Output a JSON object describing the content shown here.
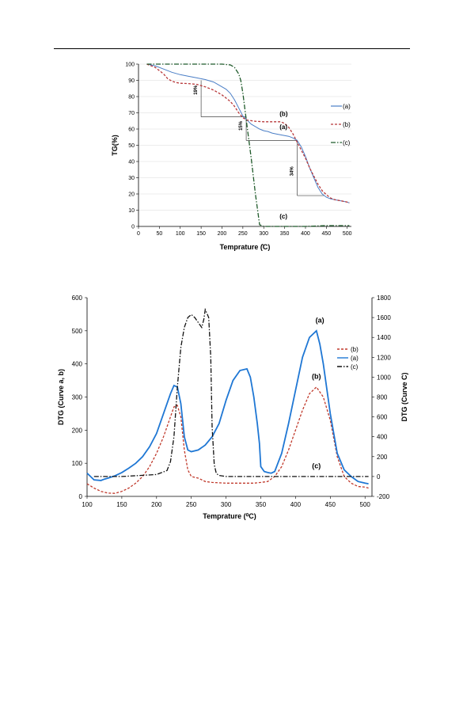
{
  "chart_data": [
    {
      "type": "line",
      "xlabel": "Temprature (̊C)",
      "ylabel": "TG(%)",
      "xlim": [
        0,
        510
      ],
      "ylim": [
        0,
        100
      ],
      "xticks": [
        0,
        50,
        100,
        150,
        200,
        250,
        300,
        350,
        400,
        450,
        500
      ],
      "yticks": [
        0,
        10,
        20,
        30,
        40,
        50,
        60,
        70,
        80,
        90,
        100
      ],
      "legend_position": "right",
      "series": [
        {
          "name": "(a)",
          "color": "#4a7ec6",
          "dash": "solid",
          "x": [
            20,
            40,
            60,
            80,
            100,
            120,
            140,
            160,
            180,
            200,
            210,
            220,
            230,
            240,
            250,
            260,
            270,
            280,
            290,
            300,
            310,
            320,
            330,
            340,
            350,
            360,
            370,
            380,
            390,
            400,
            410,
            420,
            430,
            440,
            450,
            460,
            470,
            480,
            490,
            500,
            505
          ],
          "y": [
            100,
            99,
            97,
            95,
            93.5,
            92.5,
            91.5,
            90.5,
            89,
            86,
            84.5,
            82,
            78,
            73,
            68,
            65.5,
            63,
            61.5,
            60,
            59,
            58.5,
            57.5,
            57,
            56.5,
            56,
            55.5,
            54.5,
            53,
            49,
            43,
            36,
            30,
            24,
            20,
            18,
            17,
            16.5,
            16,
            15.5,
            15,
            14.5
          ]
        },
        {
          "name": "(b)",
          "color": "#b8383a",
          "dash": "dashed",
          "x": [
            20,
            40,
            60,
            70,
            80,
            90,
            100,
            120,
            140,
            160,
            180,
            200,
            210,
            220,
            230,
            240,
            250,
            260,
            280,
            300,
            320,
            340,
            350,
            360,
            370,
            380,
            390,
            400,
            410,
            420,
            430,
            440,
            450,
            460,
            470,
            480,
            490,
            500,
            505
          ],
          "y": [
            100,
            98,
            94,
            91,
            89.5,
            88.7,
            88.2,
            88,
            87.5,
            86,
            84,
            81,
            79,
            77,
            74,
            70,
            67,
            65.5,
            64.8,
            64.5,
            64.5,
            64.5,
            63.5,
            61,
            57,
            52,
            47,
            42,
            36,
            31,
            26,
            22,
            19.5,
            17.5,
            16.5,
            16,
            15.5,
            15,
            14.5
          ]
        },
        {
          "name": "(c)",
          "color": "#1f5a2a",
          "dash": "dashdot",
          "x": [
            20,
            50,
            100,
            150,
            200,
            220,
            230,
            240,
            245,
            250,
            255,
            260,
            270,
            280,
            290,
            300,
            350,
            400,
            450,
            505
          ],
          "y": [
            100,
            100,
            100,
            100,
            100,
            99.5,
            98,
            94,
            90,
            82,
            72,
            62,
            42,
            20,
            1,
            0,
            0,
            0,
            0.5,
            0.5
          ]
        }
      ],
      "annotations": [
        {
          "text": "19%",
          "x": 150,
          "y_from": 67.5,
          "y_to": 90
        },
        {
          "text": "15%",
          "x": 258,
          "y_from": 53,
          "y_to": 67.5
        },
        {
          "text": "34%",
          "x": 380,
          "y_from": 19,
          "y_to": 53
        },
        {
          "text": "(b)",
          "x": 338,
          "y": 68,
          "color": "#b8383a"
        },
        {
          "text": "(a)",
          "x": 338,
          "y": 60,
          "color": "#4a7ec6"
        },
        {
          "text": "(c)",
          "x": 338,
          "y": 5,
          "color": "#1f5a2a"
        }
      ]
    },
    {
      "type": "line",
      "xlabel": "Temprature (⁰C)",
      "ylabel": "DTG (Curve a, b)",
      "y2label": "DTG (Curve C)",
      "xlim": [
        100,
        510
      ],
      "ylim": [
        0,
        600
      ],
      "y2lim": [
        -200,
        1800
      ],
      "xticks": [
        100,
        150,
        200,
        250,
        300,
        350,
        400,
        450,
        500
      ],
      "yticks": [
        0,
        100,
        200,
        300,
        400,
        500,
        600
      ],
      "y2ticks": [
        -200,
        0,
        200,
        400,
        600,
        800,
        1000,
        1200,
        1400,
        1600,
        1800
      ],
      "legend_position": "top-right",
      "series": [
        {
          "name": "(b)",
          "axis": "left",
          "color": "#c0392b",
          "dash": "dashed",
          "x": [
            100,
            110,
            120,
            130,
            140,
            150,
            160,
            170,
            180,
            190,
            200,
            210,
            220,
            225,
            230,
            235,
            240,
            245,
            250,
            260,
            270,
            280,
            300,
            320,
            340,
            350,
            360,
            370,
            380,
            390,
            400,
            410,
            420,
            430,
            440,
            450,
            460,
            470,
            480,
            490,
            500,
            505
          ],
          "y": [
            38,
            25,
            15,
            10,
            9,
            15,
            25,
            40,
            60,
            90,
            130,
            180,
            240,
            270,
            275,
            240,
            140,
            80,
            60,
            55,
            45,
            42,
            40,
            40,
            40,
            42,
            45,
            60,
            90,
            140,
            200,
            260,
            310,
            330,
            300,
            230,
            120,
            60,
            40,
            30,
            28,
            25
          ]
        },
        {
          "name": "(a)",
          "axis": "left",
          "color": "#1f77d4",
          "dash": "solid",
          "x": [
            100,
            105,
            110,
            120,
            125,
            130,
            140,
            150,
            160,
            170,
            180,
            190,
            200,
            210,
            220,
            225,
            230,
            235,
            240,
            245,
            250,
            260,
            270,
            280,
            290,
            300,
            310,
            320,
            330,
            335,
            340,
            345,
            348,
            350,
            355,
            360,
            365,
            370,
            380,
            390,
            400,
            410,
            420,
            430,
            435,
            440,
            450,
            460,
            470,
            480,
            490,
            500,
            505
          ],
          "y": [
            70,
            60,
            50,
            48,
            52,
            55,
            62,
            72,
            85,
            100,
            120,
            150,
            190,
            250,
            310,
            335,
            330,
            280,
            180,
            140,
            135,
            140,
            155,
            180,
            220,
            290,
            350,
            380,
            385,
            360,
            300,
            220,
            160,
            90,
            75,
            72,
            70,
            75,
            130,
            220,
            320,
            420,
            480,
            500,
            460,
            400,
            250,
            130,
            80,
            60,
            45,
            40,
            38
          ]
        },
        {
          "name": "(c)",
          "axis": "right",
          "color": "#111111",
          "dash": "dashdot",
          "x": [
            110,
            150,
            200,
            215,
            220,
            225,
            230,
            235,
            240,
            245,
            250,
            255,
            260,
            265,
            268,
            270,
            272,
            275,
            278,
            280,
            283,
            286,
            290,
            300,
            350,
            400,
            450,
            505
          ],
          "y": [
            0,
            0,
            20,
            60,
            150,
            400,
            900,
            1300,
            1500,
            1600,
            1630,
            1600,
            1550,
            1500,
            1580,
            1680,
            1650,
            1600,
            1200,
            500,
            120,
            30,
            10,
            0,
            0,
            0,
            0,
            0
          ]
        }
      ],
      "annotations": [
        {
          "text": "(a)",
          "x": 435,
          "y": 525
        },
        {
          "text": "(b)",
          "x": 430,
          "y": 355
        },
        {
          "text": "(c)",
          "x": 430,
          "y": 85
        }
      ]
    }
  ]
}
